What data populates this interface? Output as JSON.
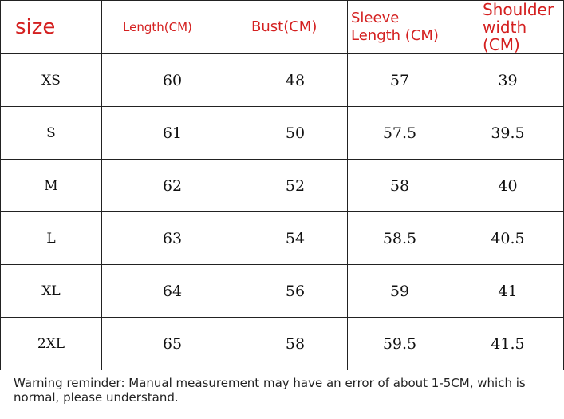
{
  "headers": [
    "size",
    "Length(CM)",
    "Bust(CM)",
    "Sleeve Length (CM)",
    "Shoulder width (CM)"
  ],
  "rows": [
    [
      "XS",
      "60",
      "48",
      "57",
      "39"
    ],
    [
      "S",
      "61",
      "50",
      "57.5",
      "39.5"
    ],
    [
      "M",
      "62",
      "52",
      "58",
      "40"
    ],
    [
      "L",
      "63",
      "54",
      "58.5",
      "40.5"
    ],
    [
      "XL",
      "64",
      "56",
      "59",
      "41"
    ],
    [
      "2XL",
      "65",
      "58",
      "59.5",
      "41.5"
    ]
  ],
  "note": "Warning reminder: Manual measurement may have an error of about 1-5CM, which is normal, please understand."
}
